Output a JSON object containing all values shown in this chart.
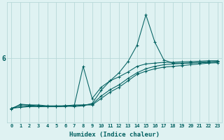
{
  "xlabel": "Humidex (Indice chaleur)",
  "bg_color": "#dff2f2",
  "grid_color": "#b8d8d8",
  "line_color": "#006060",
  "xlim": [
    -0.5,
    23.5
  ],
  "ylim": [
    2.0,
    9.5
  ],
  "ytick_val": 6,
  "x_ticks": [
    0,
    1,
    2,
    3,
    4,
    5,
    6,
    7,
    8,
    9,
    10,
    11,
    12,
    13,
    14,
    15,
    16,
    17,
    18,
    19,
    20,
    21,
    22,
    23
  ],
  "series": [
    {
      "x": [
        0,
        1,
        2,
        3,
        4,
        5,
        6,
        7,
        8,
        9,
        10,
        11,
        12,
        13,
        14,
        15,
        16,
        17,
        18,
        19,
        20,
        21,
        22,
        23
      ],
      "y": [
        2.9,
        2.95,
        3.0,
        3.0,
        3.0,
        3.0,
        3.05,
        3.05,
        3.1,
        3.1,
        3.5,
        3.9,
        4.2,
        4.6,
        5.0,
        5.2,
        5.35,
        5.45,
        5.5,
        5.55,
        5.6,
        5.65,
        5.7,
        5.72
      ]
    },
    {
      "x": [
        0,
        1,
        2,
        3,
        4,
        5,
        6,
        7,
        8,
        9,
        10,
        11,
        12,
        13,
        14,
        15,
        16,
        17,
        18,
        19,
        20,
        21,
        22,
        23
      ],
      "y": [
        2.9,
        3.0,
        3.05,
        3.0,
        3.0,
        3.0,
        3.05,
        3.1,
        3.1,
        3.15,
        3.65,
        4.05,
        4.35,
        4.75,
        5.1,
        5.35,
        5.5,
        5.6,
        5.65,
        5.68,
        5.72,
        5.75,
        5.78,
        5.8
      ]
    },
    {
      "x": [
        0,
        1,
        2,
        3,
        4,
        5,
        6,
        7,
        8,
        9,
        10,
        11,
        12,
        13,
        14,
        15,
        16,
        17,
        18,
        19,
        20,
        21,
        22,
        23
      ],
      "y": [
        2.9,
        3.1,
        3.1,
        3.05,
        3.0,
        3.0,
        3.0,
        3.05,
        5.5,
        3.5,
        4.2,
        4.6,
        4.85,
        5.15,
        5.5,
        5.65,
        5.7,
        5.75,
        5.75,
        5.78,
        5.8,
        5.82,
        5.85,
        5.85
      ]
    },
    {
      "x": [
        0,
        1,
        2,
        3,
        4,
        5,
        6,
        7,
        8,
        9,
        10,
        11,
        12,
        13,
        14,
        15,
        16,
        17,
        18,
        19,
        20,
        21,
        22,
        23
      ],
      "y": [
        2.85,
        3.15,
        3.1,
        3.1,
        3.05,
        3.05,
        3.05,
        3.0,
        3.05,
        3.2,
        4.0,
        4.6,
        5.1,
        5.8,
        6.8,
        8.7,
        7.0,
        5.9,
        5.7,
        5.7,
        5.7,
        5.72,
        5.75,
        5.78
      ]
    }
  ]
}
